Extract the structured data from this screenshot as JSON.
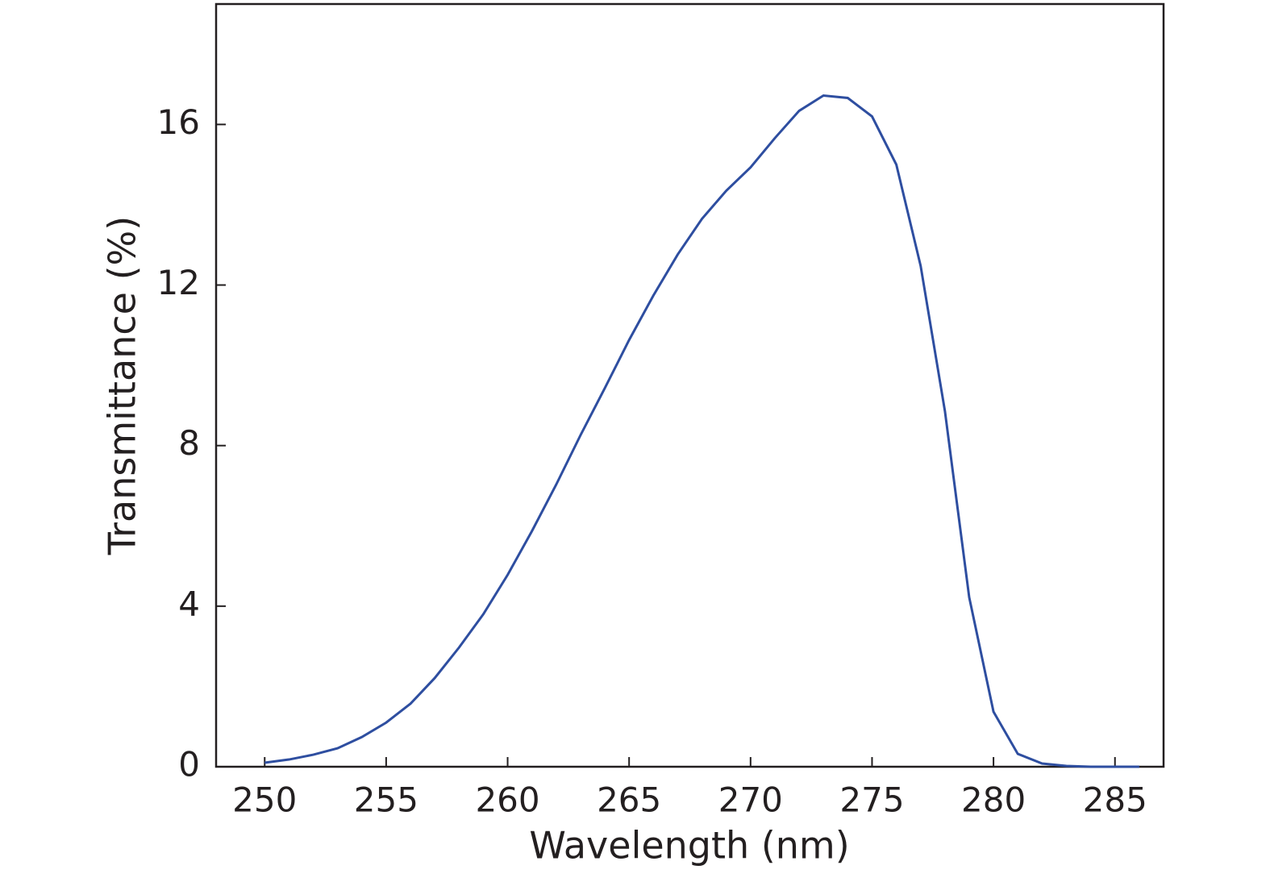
{
  "chart_data": {
    "type": "line",
    "xlabel": "Wavelength (nm)",
    "ylabel": "Transmittance (%)",
    "x": [
      250,
      251,
      252,
      253,
      254,
      255,
      256,
      257,
      258,
      259,
      260,
      261,
      262,
      263,
      264,
      265,
      266,
      267,
      268,
      269,
      270,
      271,
      272,
      273,
      274,
      275,
      276,
      277,
      278,
      279,
      280,
      281,
      282,
      283,
      284,
      285,
      286
    ],
    "series": [
      {
        "color": "#2e4ea0",
        "values": [
          0.1,
          0.18,
          0.3,
          0.46,
          0.74,
          1.1,
          1.57,
          2.21,
          2.97,
          3.8,
          4.78,
          5.87,
          7.03,
          8.26,
          9.43,
          10.63,
          11.74,
          12.76,
          13.65,
          14.35,
          14.93,
          15.66,
          16.34,
          16.72,
          16.66,
          16.2,
          15.0,
          12.48,
          8.86,
          4.22,
          1.37,
          0.32,
          0.08,
          0.02,
          0,
          0,
          0
        ]
      }
    ],
    "xlim": [
      248,
      287
    ],
    "ylim": [
      0,
      19
    ],
    "xticks": [
      250,
      255,
      260,
      265,
      270,
      275,
      280,
      285
    ],
    "yticks": [
      0,
      4,
      8,
      12,
      16
    ]
  }
}
